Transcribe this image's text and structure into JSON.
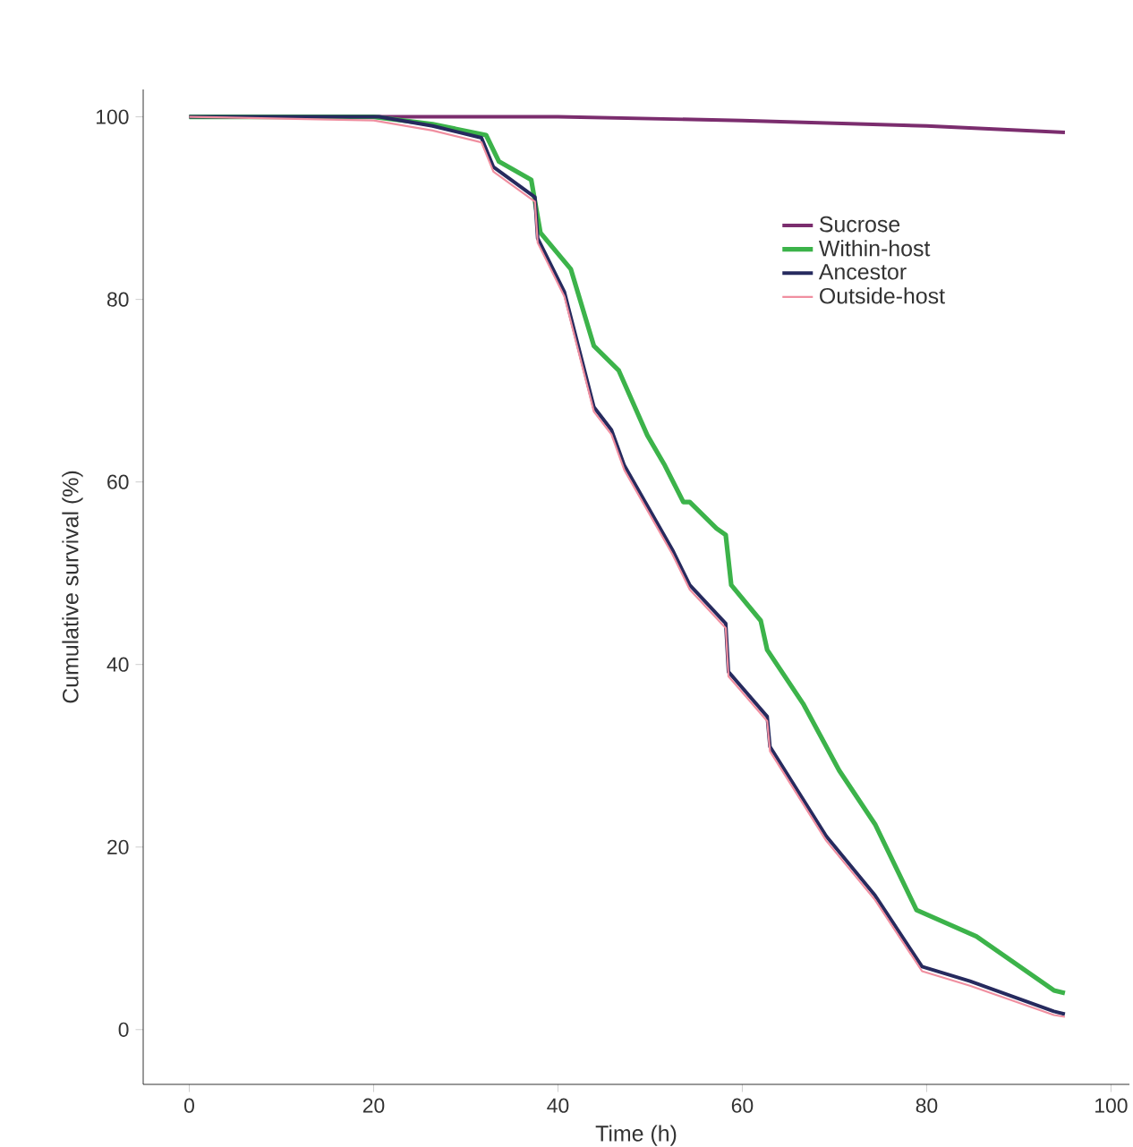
{
  "chart_data": {
    "type": "line",
    "xlabel": "Time (h)",
    "ylabel": "Cumulative survival (%)",
    "xlim": [
      -5,
      102
    ],
    "ylim": [
      -6,
      103
    ],
    "xticks": [
      0,
      20,
      40,
      60,
      80,
      100
    ],
    "yticks": [
      0,
      20,
      40,
      60,
      80,
      100
    ],
    "legend": "top right",
    "grid": false,
    "line_style": "solid",
    "series": [
      {
        "name": "Sucrose",
        "color": "#7b2d6e",
        "x": [
          0,
          20,
          40,
          60,
          80,
          95
        ],
        "values": [
          100,
          100,
          100,
          99.6,
          99,
          98.3
        ]
      },
      {
        "name": "Within-host",
        "color": "#3cb34a",
        "x": [
          0,
          20,
          26.4,
          32.2,
          33.6,
          37.1,
          38.1,
          41.4,
          43.9,
          46.6,
          49.7,
          51.6,
          53.6,
          54.3,
          57.2,
          58.2,
          58.8,
          62,
          62.7,
          66.6,
          70.5,
          74.4,
          78.9,
          85.4,
          93.8,
          95
        ],
        "values": [
          100,
          100,
          99.2,
          98,
          95.1,
          93.1,
          87.3,
          83.3,
          74.9,
          72.2,
          65.1,
          61.8,
          57.8,
          57.8,
          54.9,
          54.2,
          48.7,
          44.8,
          41.6,
          35.7,
          28.4,
          22.5,
          13.1,
          10.2,
          4.3,
          4
        ]
      },
      {
        "name": "Ancestor",
        "color": "#262a5e",
        "x": [
          0,
          20.6,
          26.4,
          31.7,
          33,
          37.5,
          37.8,
          40.7,
          43.9,
          45.8,
          47.2,
          52.4,
          54.3,
          58.2,
          58.5,
          62.7,
          63,
          69.1,
          74.4,
          79.5,
          84.7,
          93.8,
          95
        ],
        "values": [
          100,
          100,
          99,
          97.7,
          94.5,
          91.2,
          86.7,
          80.8,
          68.2,
          65.7,
          61.8,
          52.6,
          48.7,
          44.5,
          39.2,
          34.3,
          31,
          21.2,
          14.7,
          6.9,
          5.3,
          2,
          1.7
        ]
      },
      {
        "name": "Outside-host",
        "color": "#f08fa0",
        "x": [
          0,
          20,
          26.4,
          31.7,
          33,
          37.5,
          37.8,
          40.7,
          43.9,
          45.8,
          47.2,
          52.4,
          54.3,
          58.2,
          58.5,
          62.7,
          63,
          69.1,
          74.4,
          79.5,
          84.7,
          93.8,
          95
        ],
        "values": [
          100,
          99.6,
          98.5,
          97.2,
          94,
          90.7,
          86.2,
          80.3,
          67.7,
          65.2,
          61.3,
          52.1,
          48.2,
          44,
          38.7,
          33.8,
          30.5,
          20.7,
          14.2,
          6.4,
          4.8,
          1.6,
          1.4
        ]
      }
    ]
  }
}
